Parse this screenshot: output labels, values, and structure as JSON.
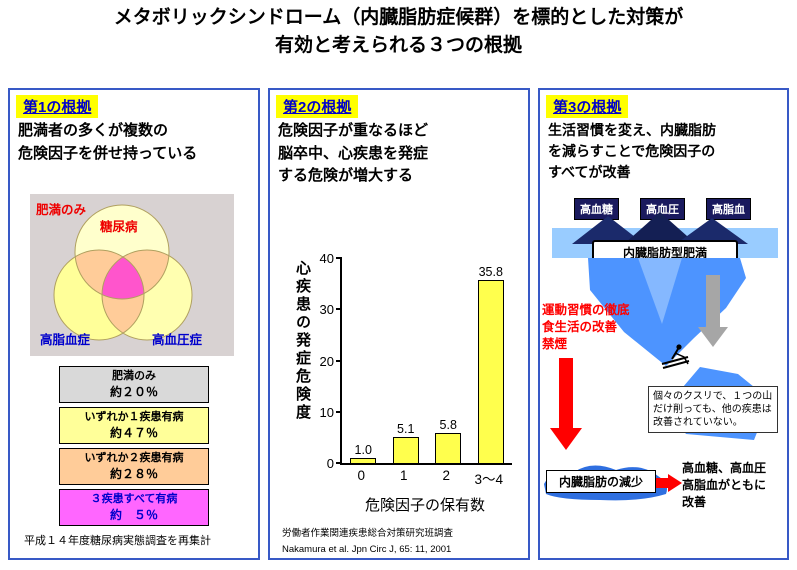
{
  "title": {
    "line1": "メタボリックシンドローム（内臓脂肪症候群）を標的とした対策が",
    "line2": "有効と考えられる３つの根拠"
  },
  "colors": {
    "panel_border": "#3859c6",
    "header_bg": "#ffff00",
    "header_text": "#0000cc",
    "emphasis_red": "#ff0000",
    "water_blue": "#99ccff",
    "iceberg_blue": "#4d94ff",
    "deep_navy": "#1a1a5e",
    "bar_yellow": "#ffff4d",
    "venn_overlap_peach": "#ffcc99",
    "venn_center_pink": "#ff55cc"
  },
  "panel1": {
    "header": "第1の根拠",
    "statement": "肥満者の多くが複数の\n危険因子を併せ持っている",
    "venn": {
      "obesity_only": "肥満のみ",
      "diabetes": "糖尿病",
      "hyperlipidemia": "高脂血症",
      "hypertension": "高血圧症"
    },
    "legend": [
      {
        "label": "肥満のみ",
        "value": "約２０％",
        "color": "#d9d9d9",
        "text_color": "#000000"
      },
      {
        "label": "いずれか１疾患有病",
        "value": "約４７％",
        "color": "#ffff99",
        "text_color": "#000000"
      },
      {
        "label": "いずれか２疾患有病",
        "value": "約２８％",
        "color": "#ffcc99",
        "text_color": "#000000"
      },
      {
        "label": "３疾患すべて有病",
        "value": "約　５％",
        "color": "#ff66ff",
        "text_color": "#0000cc"
      }
    ],
    "footnote": "平成１４年度糖尿病実態調査を再集計"
  },
  "panel2": {
    "header": "第2の根拠",
    "statement": "危険因子が重なるほど\n脳卒中、心疾患を発症\nする危険が増大する",
    "footnote1": "労働者作業関連疾患総合対策研究班調査",
    "footnote2": "Nakamura et al. Jpn Circ J, 65: 11, 2001"
  },
  "chart_data": {
    "type": "bar",
    "categories": [
      "0",
      "1",
      "2",
      "3〜4"
    ],
    "values": [
      1.0,
      5.1,
      5.8,
      35.8
    ],
    "title": "",
    "xlabel": "危険因子の保有数",
    "ylabel": "心疾患の発症危険度",
    "ylim": [
      0,
      40
    ],
    "yticks": [
      0,
      10,
      20,
      30,
      40
    ],
    "bar_color": "#ffff4d",
    "grid": false,
    "legend_position": "none"
  },
  "panel3": {
    "header": "第3の根拠",
    "statement": "生活習慣を変え、内臓脂肪\nを減らすことで危険因子の\nすべてが改善",
    "risk_labels": [
      "高血糖",
      "高血圧",
      "高脂血"
    ],
    "main_box": "内臓脂肪型肥満",
    "lifestyle": "運動習慣の徹底\n食生活の改善\n禁煙",
    "note": "個々のクスリで、１つの山だけ削っても、他の疾患は改善されていない。",
    "bottom_box": "内臓脂肪の減少",
    "bottom_result": "高血糖、高血圧\n高脂血がともに\n改善"
  }
}
